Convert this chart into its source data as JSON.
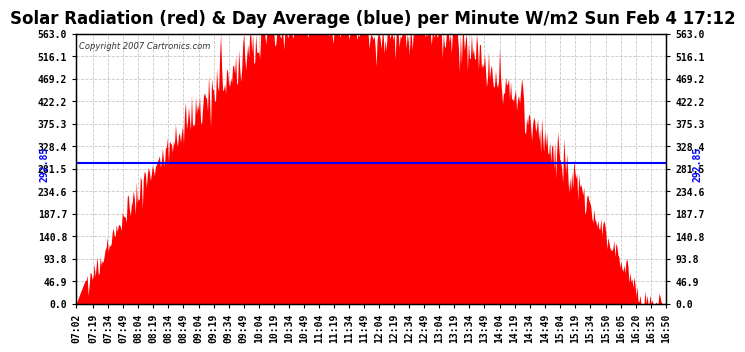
{
  "title": "Solar Radiation (red) & Day Average (blue) per Minute W/m2 Sun Feb 4 17:12",
  "copyright_text": "Copyright 2007 Cartronics.com",
  "avg_value": 292.85,
  "avg_label": "292.85",
  "y_max": 563.0,
  "y_min": 0.0,
  "yticks": [
    0.0,
    46.9,
    93.8,
    140.8,
    187.7,
    234.6,
    281.5,
    328.4,
    375.3,
    422.2,
    469.2,
    516.1,
    563.0
  ],
  "ytick_labels": [
    "0.0",
    "46.9",
    "93.8",
    "140.8",
    "187.7",
    "234.6",
    "281.5",
    "328.4",
    "375.3",
    "422.2",
    "469.2",
    "516.1",
    "563.0"
  ],
  "bar_color": "#FF0000",
  "avg_line_color": "#0000FF",
  "background_color": "#FFFFFF",
  "grid_color": "#C8C8C8",
  "title_fontsize": 12,
  "axis_fontsize": 7,
  "time_start": "07:02",
  "time_end": "16:50",
  "xtick_labels": [
    "07:02",
    "07:19",
    "07:34",
    "07:49",
    "08:04",
    "08:19",
    "08:34",
    "08:49",
    "09:04",
    "09:19",
    "09:34",
    "09:49",
    "10:04",
    "10:19",
    "10:34",
    "10:49",
    "11:04",
    "11:19",
    "11:34",
    "11:49",
    "12:04",
    "12:19",
    "12:34",
    "12:49",
    "13:04",
    "13:19",
    "13:34",
    "13:49",
    "14:04",
    "14:19",
    "14:34",
    "14:49",
    "15:04",
    "15:19",
    "15:34",
    "15:50",
    "16:05",
    "16:20",
    "16:35",
    "16:50"
  ]
}
